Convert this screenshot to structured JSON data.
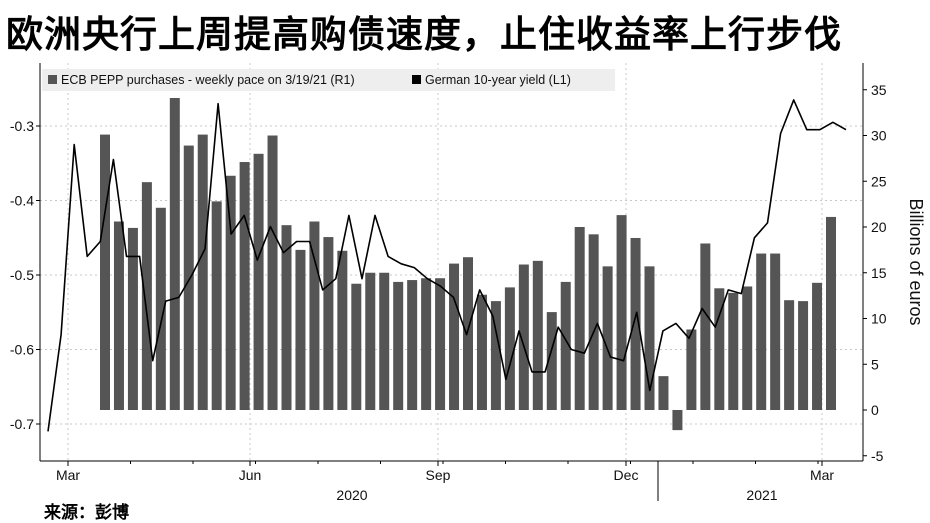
{
  "title": "欧洲央行上周提高购债速度，止住收益率上行步伐",
  "source": "来源：彭博",
  "chart_data": {
    "type": "bar",
    "legend": [
      {
        "label": "ECB PEPP purchases - weekly pace on 3/19/21 (R1)",
        "color": "#555555",
        "axis": "right"
      },
      {
        "label": "German 10-year yield  (L1)",
        "color": "#000000",
        "axis": "left"
      }
    ],
    "left_axis": {
      "ticks": [
        "-0.3",
        "-0.4",
        "-0.5",
        "-0.6",
        "-0.7"
      ],
      "ylim": [
        -0.735,
        -0.2
      ]
    },
    "right_axis": {
      "ticks": [
        "35",
        "30",
        "25",
        "20",
        "15",
        "10",
        "5",
        "0",
        "-5"
      ],
      "ylim": [
        -5.8,
        38.5
      ],
      "label": "Billions of euros"
    },
    "x_axis": {
      "months": [
        "Mar",
        "Jun",
        "Sep",
        "Dec",
        "Mar"
      ],
      "years": [
        "2020",
        "2021"
      ]
    },
    "bars": {
      "name": "ECB PEPP purchases - weekly pace on 3/19/21 (R1)",
      "values": [
        30.1,
        20.6,
        19.9,
        24.9,
        22.1,
        34.1,
        28.9,
        30.1,
        22.8,
        25.6,
        27.1,
        28.0,
        30.0,
        20.2,
        17.5,
        20.6,
        18.9,
        17.4,
        13.8,
        15.0,
        15.0,
        14.0,
        14.2,
        14.4,
        14.4,
        16.0,
        16.7,
        12.6,
        11.9,
        13.4,
        15.9,
        16.3,
        10.7,
        14.0,
        20.0,
        19.2,
        15.7,
        21.3,
        18.8,
        15.7,
        3.7,
        -2.2,
        8.8,
        18.2,
        13.3,
        12.8,
        13.5,
        17.1,
        17.1,
        12.0,
        11.9,
        13.9,
        21.1
      ]
    },
    "line": {
      "name": "German 10-year yield  (L1)",
      "values": [
        -0.71,
        -0.58,
        -0.325,
        -0.475,
        -0.455,
        -0.345,
        -0.475,
        -0.475,
        -0.615,
        -0.535,
        -0.53,
        -0.5,
        -0.465,
        -0.27,
        -0.445,
        -0.42,
        -0.48,
        -0.435,
        -0.47,
        -0.455,
        -0.455,
        -0.52,
        -0.505,
        -0.42,
        -0.505,
        -0.42,
        -0.475,
        -0.485,
        -0.49,
        -0.505,
        -0.515,
        -0.53,
        -0.58,
        -0.52,
        -0.555,
        -0.64,
        -0.575,
        -0.63,
        -0.63,
        -0.57,
        -0.6,
        -0.605,
        -0.565,
        -0.61,
        -0.615,
        -0.55,
        -0.655,
        -0.575,
        -0.565,
        -0.585,
        -0.545,
        -0.57,
        -0.52,
        -0.525,
        -0.45,
        -0.43,
        -0.31,
        -0.265,
        -0.305,
        -0.305,
        -0.295,
        -0.305
      ]
    }
  }
}
